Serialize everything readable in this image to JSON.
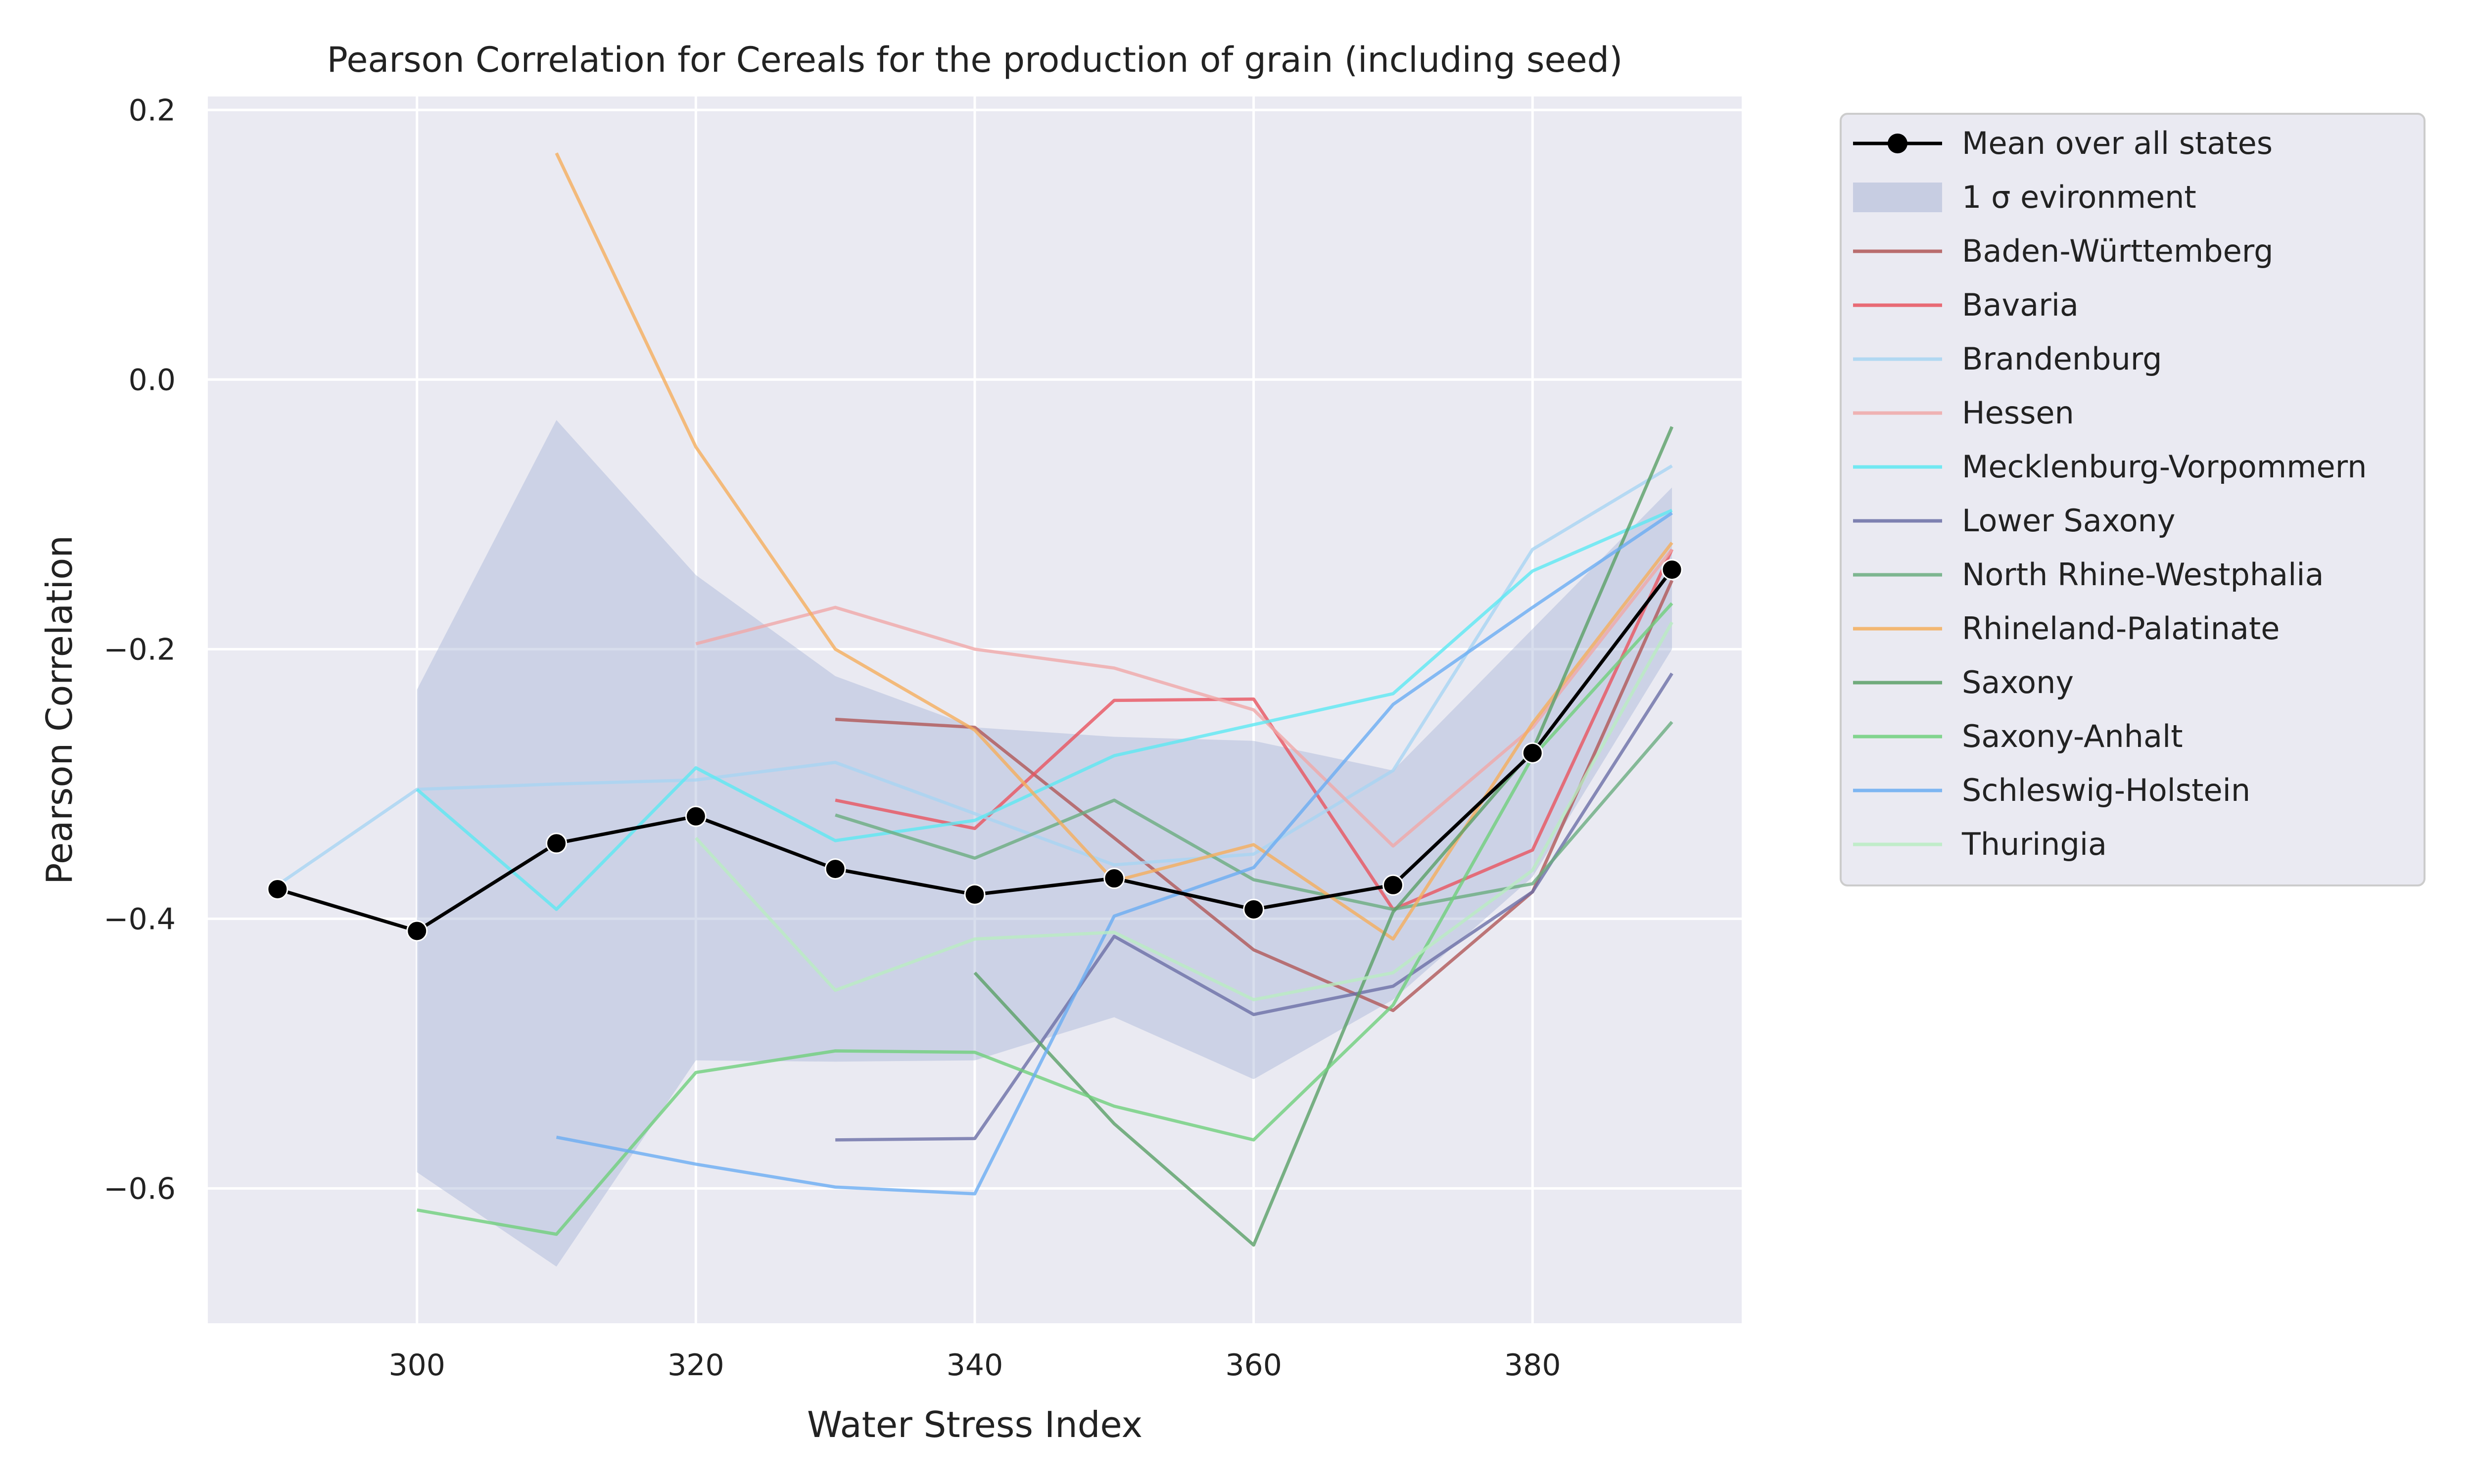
{
  "chart_data": {
    "type": "line",
    "title": "Pearson Correlation for Cereals for the production of grain (including seed)",
    "xlabel": "Water Stress Index",
    "ylabel": "Pearson Correlation",
    "xlim": [
      285,
      395
    ],
    "ylim": [
      -0.7,
      0.21
    ],
    "xticks": [
      300,
      320,
      340,
      360,
      380
    ],
    "xtick_labels": [
      "300",
      "320",
      "340",
      "360",
      "380"
    ],
    "yticks": [
      0.2,
      0.0,
      -0.2,
      -0.4,
      -0.6
    ],
    "ytick_labels": [
      "0.2",
      "0.0",
      "−0.2",
      "−0.4",
      "−0.6"
    ],
    "grid": true,
    "background": "#eaeaf2",
    "legend_position": "outside-right-top",
    "mean": {
      "name": "Mean over all states",
      "color": "#000000",
      "x": [
        290,
        300,
        310,
        320,
        330,
        340,
        350,
        360,
        370,
        380,
        390
      ],
      "y": [
        -0.378,
        -0.409,
        -0.344,
        -0.324,
        -0.363,
        -0.382,
        -0.37,
        -0.393,
        -0.375,
        -0.277,
        -0.141
      ]
    },
    "band": {
      "name": "1 σ evironment",
      "color": "#a9b5d6",
      "x": [
        300,
        310,
        320,
        330,
        340,
        350,
        360,
        370,
        380,
        390
      ],
      "upper": [
        -0.23,
        -0.03,
        -0.145,
        -0.22,
        -0.258,
        -0.265,
        -0.268,
        -0.29,
        -0.185,
        -0.08
      ],
      "lower": [
        -0.588,
        -0.658,
        -0.505,
        -0.506,
        -0.505,
        -0.473,
        -0.519,
        -0.46,
        -0.369,
        -0.2
      ]
    },
    "series": [
      {
        "name": "Baden-Württemberg",
        "color": "#b05757",
        "x": [
          330,
          340,
          350,
          360,
          370,
          380,
          390
        ],
        "y": [
          -0.252,
          -0.258,
          -0.34,
          -0.423,
          -0.468,
          -0.38,
          -0.149
        ]
      },
      {
        "name": "Bavaria",
        "color": "#e8545f",
        "x": [
          330,
          340,
          350,
          360,
          370,
          380,
          390
        ],
        "y": [
          -0.312,
          -0.333,
          -0.238,
          -0.237,
          -0.393,
          -0.349,
          -0.126
        ]
      },
      {
        "name": "Brandenburg",
        "color": "#a7d5f2",
        "x": [
          290,
          300,
          310,
          320,
          330,
          340,
          350,
          360,
          370,
          380,
          390
        ],
        "y": [
          -0.375,
          -0.304,
          -0.3,
          -0.297,
          -0.284,
          -0.322,
          -0.36,
          -0.352,
          -0.29,
          -0.126,
          -0.064
        ]
      },
      {
        "name": "Hessen",
        "color": "#f0a8a8",
        "x": [
          320,
          330,
          340,
          350,
          360,
          370,
          380,
          390
        ],
        "y": [
          -0.196,
          -0.169,
          -0.2,
          -0.214,
          -0.245,
          -0.346,
          -0.258,
          -0.126
        ]
      },
      {
        "name": "Mecklenburg-Vorpommern",
        "color": "#5ce8f2",
        "x": [
          300,
          310,
          320,
          330,
          340,
          350,
          360,
          370,
          380,
          390
        ],
        "y": [
          -0.304,
          -0.393,
          -0.288,
          -0.342,
          -0.327,
          -0.279,
          -0.256,
          -0.233,
          -0.142,
          -0.097
        ]
      },
      {
        "name": "Lower Saxony",
        "color": "#6b6fa6",
        "x": [
          330,
          340,
          350,
          360,
          370,
          380,
          390
        ],
        "y": [
          -0.564,
          -0.563,
          -0.413,
          -0.471,
          -0.45,
          -0.38,
          -0.218
        ]
      },
      {
        "name": "North Rhine-Westphalia",
        "color": "#6aad7f",
        "x": [
          330,
          340,
          350,
          360,
          370,
          380,
          390
        ],
        "y": [
          -0.323,
          -0.355,
          -0.312,
          -0.371,
          -0.393,
          -0.374,
          -0.254
        ]
      },
      {
        "name": "Rhineland-Palatinate",
        "color": "#f5ae5c",
        "x": [
          310,
          320,
          330,
          340,
          350,
          360,
          370,
          380,
          390
        ],
        "y": [
          0.168,
          -0.05,
          -0.2,
          -0.26,
          -0.372,
          -0.345,
          -0.415,
          -0.255,
          -0.121
        ]
      },
      {
        "name": "Saxony",
        "color": "#5aa067",
        "x": [
          340,
          350,
          360,
          370,
          380,
          390
        ],
        "y": [
          -0.44,
          -0.552,
          -0.642,
          -0.395,
          -0.275,
          -0.035
        ]
      },
      {
        "name": "Saxony-Anhalt",
        "color": "#6fd07c",
        "x": [
          300,
          310,
          320,
          330,
          340,
          350,
          360,
          370,
          380,
          390
        ],
        "y": [
          -0.616,
          -0.634,
          -0.514,
          -0.498,
          -0.499,
          -0.539,
          -0.564,
          -0.464,
          -0.28,
          -0.166
        ]
      },
      {
        "name": "Schleswig-Holstein",
        "color": "#6aadf2",
        "x": [
          310,
          320,
          330,
          340,
          350,
          360,
          370,
          380,
          390
        ],
        "y": [
          -0.562,
          -0.582,
          -0.599,
          -0.604,
          -0.398,
          -0.362,
          -0.241,
          -0.169,
          -0.099
        ]
      },
      {
        "name": "Thuringia",
        "color": "#b9ecc2",
        "x": [
          320,
          330,
          340,
          350,
          360,
          370,
          380,
          390
        ],
        "y": [
          -0.34,
          -0.453,
          -0.415,
          -0.41,
          -0.46,
          -0.44,
          -0.364,
          -0.18
        ]
      }
    ]
  }
}
